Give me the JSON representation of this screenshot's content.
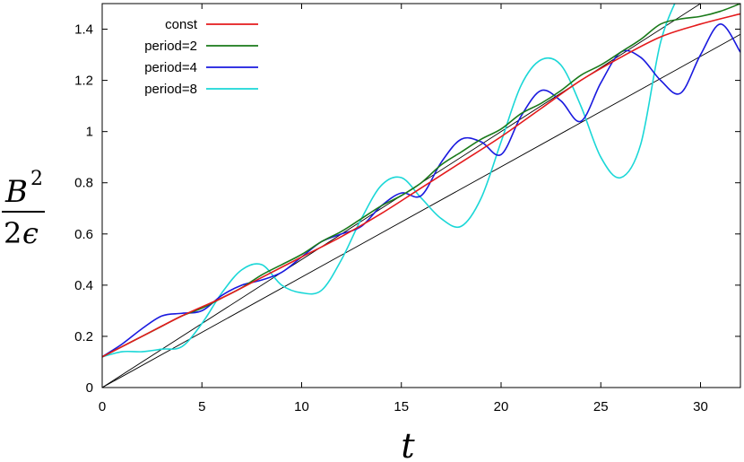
{
  "chart_data": {
    "type": "line",
    "title": "",
    "xlabel": "t",
    "ylabel": {
      "numerator_base": "B",
      "numerator_exp": "2",
      "denominator_coef": "2",
      "denominator_var": "ϵ"
    },
    "xlim": [
      0,
      32
    ],
    "ylim": [
      0,
      1.5
    ],
    "xticks": [
      0,
      5,
      10,
      15,
      20,
      25,
      30
    ],
    "yticks": [
      0,
      0.2,
      0.4,
      0.6,
      0.8,
      1,
      1.2,
      1.4
    ],
    "grid": false,
    "legend_position": "top-left",
    "reference_lines": [
      {
        "points": [
          [
            0,
            0
          ],
          [
            30,
            1.5
          ]
        ],
        "color": "#000000"
      },
      {
        "points": [
          [
            0,
            0
          ],
          [
            32,
            1.38
          ]
        ],
        "color": "#000000"
      }
    ],
    "series": [
      {
        "name": "const",
        "color": "#e41a1c",
        "x": [
          0,
          2,
          4,
          6,
          8,
          10,
          12,
          14,
          16,
          18,
          20,
          22,
          24,
          26,
          28,
          30,
          32
        ],
        "y": [
          0.12,
          0.2,
          0.28,
          0.35,
          0.43,
          0.51,
          0.59,
          0.68,
          0.78,
          0.88,
          0.98,
          1.09,
          1.2,
          1.29,
          1.37,
          1.42,
          1.46
        ]
      },
      {
        "name": "period=2",
        "color": "#1a7a1a",
        "x": [
          0,
          1,
          2,
          3,
          4,
          5,
          6,
          7,
          8,
          9,
          10,
          11,
          12,
          13,
          14,
          15,
          16,
          17,
          18,
          19,
          20,
          21,
          22,
          23,
          24,
          25,
          26,
          27,
          28,
          29,
          30,
          31,
          32
        ],
        "y": [
          0.12,
          0.16,
          0.2,
          0.24,
          0.28,
          0.31,
          0.35,
          0.39,
          0.44,
          0.48,
          0.52,
          0.57,
          0.61,
          0.66,
          0.71,
          0.75,
          0.8,
          0.87,
          0.92,
          0.97,
          1.01,
          1.07,
          1.11,
          1.16,
          1.22,
          1.26,
          1.31,
          1.36,
          1.42,
          1.44,
          1.45,
          1.47,
          1.5
        ]
      },
      {
        "name": "period=4",
        "color": "#1a1adf",
        "x": [
          0,
          1,
          2,
          3,
          4,
          5,
          6,
          7,
          8,
          9,
          10,
          11,
          12,
          13,
          14,
          15,
          16,
          17,
          18,
          19,
          20,
          21,
          22,
          23,
          24,
          25,
          26,
          27,
          28,
          29,
          30,
          31,
          32
        ],
        "y": [
          0.12,
          0.17,
          0.23,
          0.28,
          0.29,
          0.3,
          0.36,
          0.4,
          0.42,
          0.45,
          0.51,
          0.57,
          0.6,
          0.63,
          0.71,
          0.76,
          0.75,
          0.88,
          0.97,
          0.96,
          0.91,
          1.06,
          1.16,
          1.12,
          1.04,
          1.19,
          1.31,
          1.29,
          1.2,
          1.15,
          1.3,
          1.42,
          1.31
        ]
      },
      {
        "name": "period=8",
        "color": "#1ad7d7",
        "x": [
          0,
          1,
          2,
          3,
          4,
          5,
          6,
          7,
          8,
          9,
          10,
          11,
          12,
          13,
          14,
          15,
          16,
          17,
          18,
          19,
          20,
          21,
          22,
          23,
          24,
          25,
          26,
          27,
          28,
          29
        ],
        "y": [
          0.12,
          0.14,
          0.14,
          0.15,
          0.16,
          0.25,
          0.37,
          0.46,
          0.48,
          0.4,
          0.37,
          0.38,
          0.5,
          0.66,
          0.79,
          0.82,
          0.74,
          0.66,
          0.63,
          0.74,
          0.96,
          1.18,
          1.28,
          1.26,
          1.1,
          0.9,
          0.82,
          0.95,
          1.35,
          1.55
        ]
      }
    ]
  }
}
